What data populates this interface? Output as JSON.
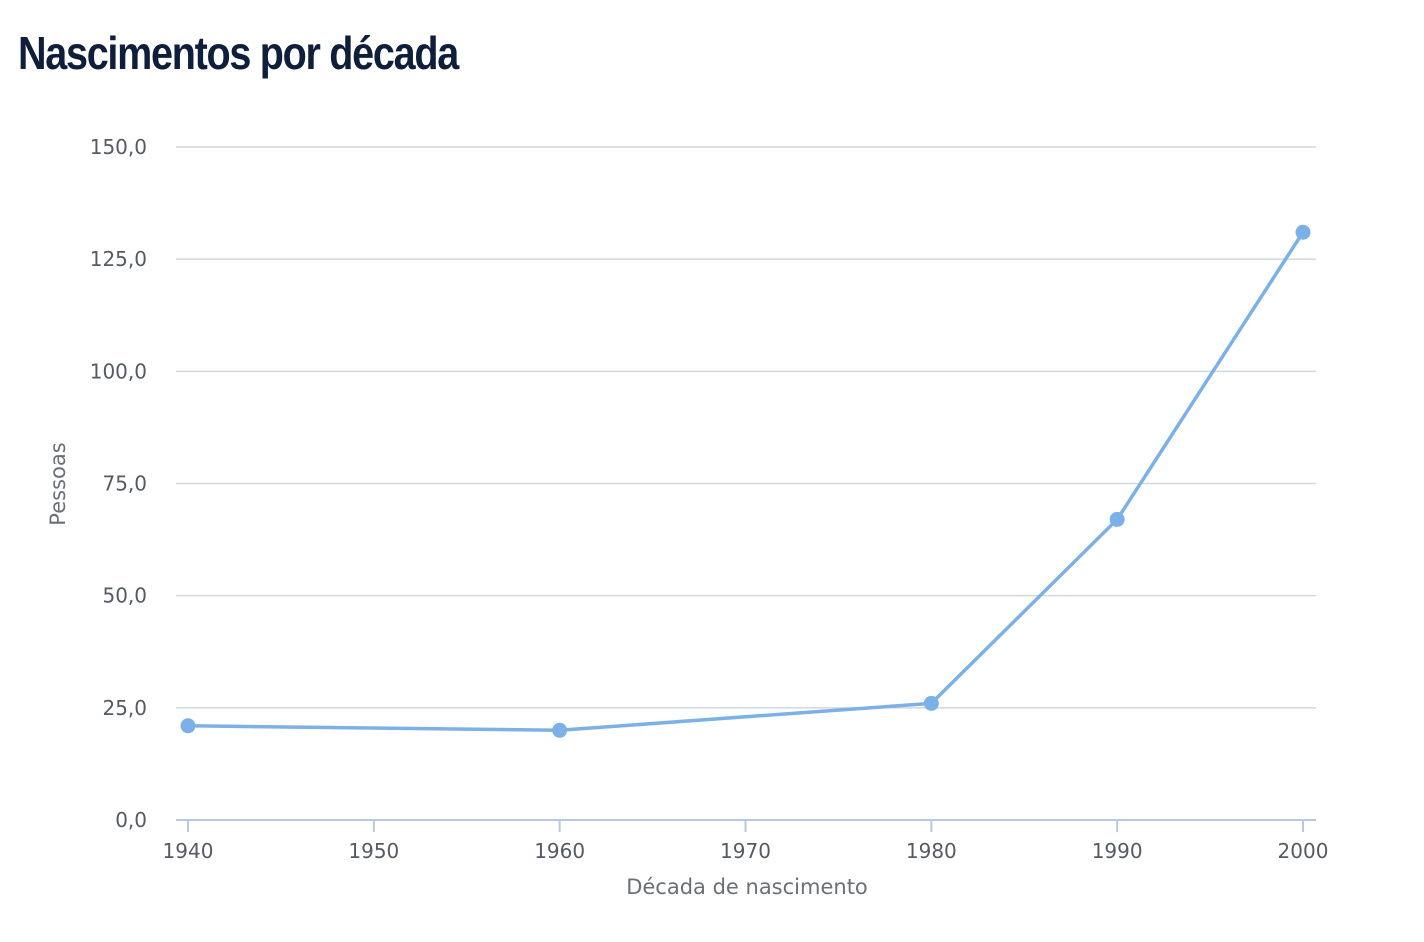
{
  "title": "Nascimentos por década",
  "colors": {
    "series": "#7cb1e8",
    "grid": "#d3d7dc",
    "axis": "#b6c9dd",
    "title": "#0f1e3a",
    "tick_text": "#555a63",
    "axis_title": "#6b6f76"
  },
  "chart_data": {
    "type": "line",
    "title": "Nascimentos por década",
    "xlabel": "Década de nascimento",
    "ylabel": "Pessoas",
    "x": [
      1940,
      1960,
      1980,
      1990,
      2000
    ],
    "series": [
      {
        "values": [
          21,
          20,
          26,
          67,
          131
        ]
      }
    ],
    "xlim": [
      1940,
      2000
    ],
    "ylim": [
      0,
      150
    ],
    "x_ticks": [
      1940,
      1950,
      1960,
      1970,
      1980,
      1990,
      2000
    ],
    "x_tick_labels": [
      "1940",
      "1950",
      "1960",
      "1970",
      "1980",
      "1990",
      "2000"
    ],
    "y_ticks": [
      0,
      25,
      50,
      75,
      100,
      125,
      150
    ],
    "y_tick_labels": [
      "0,0",
      "25,0",
      "50,0",
      "75,0",
      "100,0",
      "125,0",
      "150,0"
    ],
    "grid": true,
    "legend": "none"
  }
}
